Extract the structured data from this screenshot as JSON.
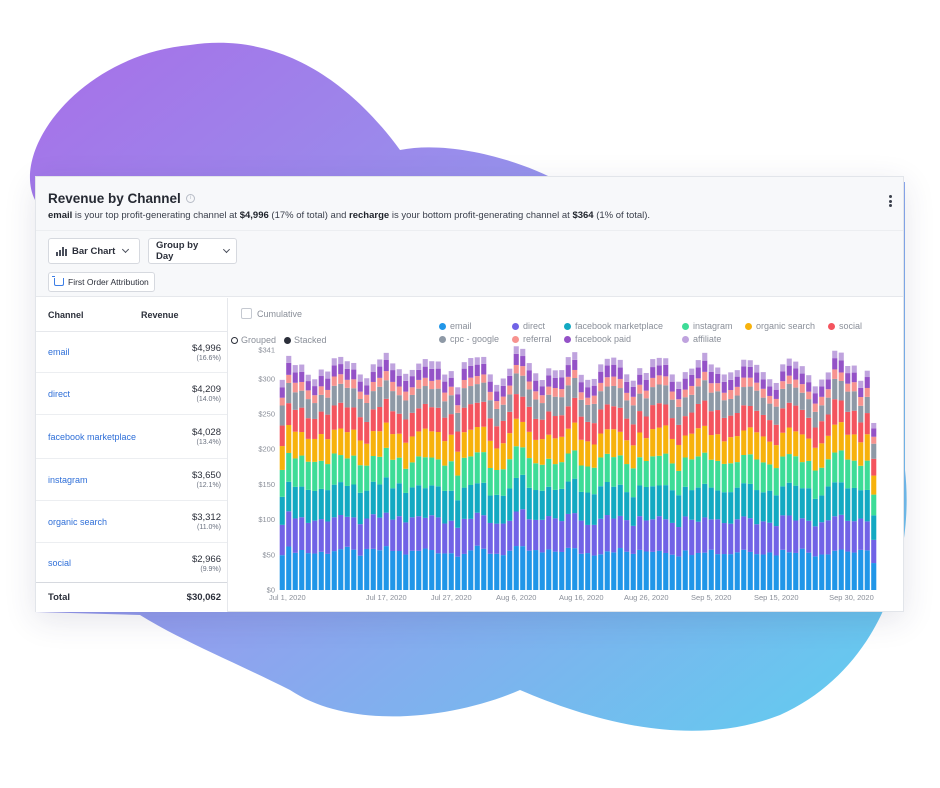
{
  "card": {
    "title": "Revenue by Channel",
    "subtitle_top_name": "email",
    "subtitle_mid1": " is your top profit-generating channel at ",
    "subtitle_top_value": "$4,996",
    "subtitle_mid2": " (17% of total) and ",
    "subtitle_bottom_name": "recharge",
    "subtitle_mid3": " is your bottom profit-generating channel at ",
    "subtitle_bottom_value": "$364",
    "subtitle_end": " (1% of total)."
  },
  "toolbar": {
    "chart_type": "Bar Chart",
    "group_by": "Group by Day",
    "attribution": "First Order Attribution"
  },
  "table": {
    "header_channel": "Channel",
    "header_revenue": "Revenue",
    "rows": [
      {
        "name": "email",
        "revenue": "$4,996",
        "pct": "(16.6%)"
      },
      {
        "name": "direct",
        "revenue": "$4,209",
        "pct": "(14.0%)"
      },
      {
        "name": "facebook marketplace",
        "revenue": "$4,028",
        "pct": "(13.4%)"
      },
      {
        "name": "instagram",
        "revenue": "$3,650",
        "pct": "(12.1%)"
      },
      {
        "name": "organic search",
        "revenue": "$3,312",
        "pct": "(11.0%)"
      },
      {
        "name": "social",
        "revenue": "$2,966",
        "pct": "(9.9%)"
      }
    ],
    "total_label": "Total",
    "total_value": "$30,062"
  },
  "controls": {
    "cumulative": "Cumulative",
    "grouped": "Grouped",
    "stacked": "Stacked",
    "mode": "stacked"
  },
  "chart_data": {
    "type": "bar",
    "stacked": true,
    "ylim": [
      0,
      341
    ],
    "y_ticks": [
      "$0",
      "$50",
      "$100",
      "$150",
      "$200",
      "$250",
      "$300",
      "$341"
    ],
    "y_tick_values": [
      0,
      50,
      100,
      150,
      200,
      250,
      300,
      341
    ],
    "x_tick_labels": [
      "Jul 1, 2020",
      "Jul 17, 2020",
      "Jul 27, 2020",
      "Aug 6, 2020",
      "Aug 16, 2020",
      "Aug 26, 2020",
      "Sep 5, 2020",
      "Sep 15, 2020",
      "Sep 30, 2020"
    ],
    "x_tick_days": [
      0,
      16,
      26,
      36,
      46,
      56,
      66,
      76,
      91
    ],
    "day_count": 92,
    "series": [
      {
        "name": "email",
        "color": "#2196e8",
        "base": 55
      },
      {
        "name": "direct",
        "color": "#7163e6",
        "base": 46
      },
      {
        "name": "facebook marketplace",
        "color": "#13a9c2",
        "base": 44
      },
      {
        "name": "instagram",
        "color": "#3ddc97",
        "base": 40
      },
      {
        "name": "organic search",
        "color": "#f7b20c",
        "base": 36
      },
      {
        "name": "social",
        "color": "#f4545e",
        "base": 32
      },
      {
        "name": "cpc - google",
        "color": "#8e99a6",
        "base": 26
      },
      {
        "name": "referral",
        "color": "#f7938f",
        "base": 12
      },
      {
        "name": "facebook paid",
        "color": "#9452c7",
        "base": 15
      },
      {
        "name": "affiliate",
        "color": "#bfa3de",
        "base": 10
      }
    ]
  }
}
